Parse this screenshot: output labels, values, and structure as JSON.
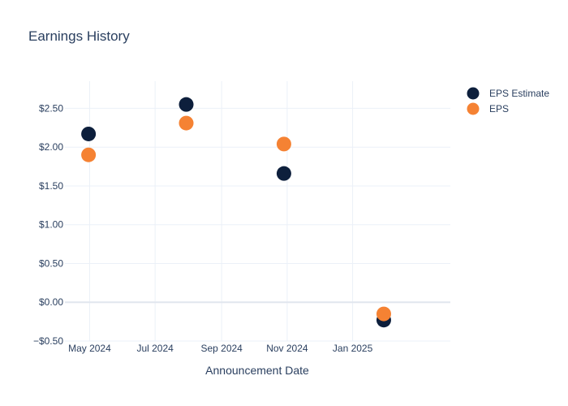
{
  "chart_data": {
    "type": "scatter",
    "title": "Earnings History",
    "xlabel": "Announcement Date",
    "ylabel": "",
    "x_type": "date",
    "xlim": [
      "2024-04-08",
      "2025-04-02"
    ],
    "ylim": [
      -0.5,
      2.85
    ],
    "x_ticks": [
      {
        "value": "2024-05-01",
        "label": "May 2024"
      },
      {
        "value": "2024-07-01",
        "label": "Jul 2024"
      },
      {
        "value": "2024-09-01",
        "label": "Sep 2024"
      },
      {
        "value": "2024-11-01",
        "label": "Nov 2024"
      },
      {
        "value": "2025-01-01",
        "label": "Jan 2025"
      }
    ],
    "y_ticks": [
      {
        "value": -0.5,
        "label": "−$0.50"
      },
      {
        "value": 0,
        "label": "$0.00"
      },
      {
        "value": 0.5,
        "label": "$0.50"
      },
      {
        "value": 1,
        "label": "$1.00"
      },
      {
        "value": 1.5,
        "label": "$1.50"
      },
      {
        "value": 2,
        "label": "$2.00"
      },
      {
        "value": 2.5,
        "label": "$2.50"
      }
    ],
    "grid": true,
    "legend_position": "top-right",
    "series": [
      {
        "name": "EPS Estimate",
        "color": "#0d1f3c",
        "points": [
          {
            "x": "2024-04-30",
            "y": 2.17
          },
          {
            "x": "2024-07-30",
            "y": 2.55
          },
          {
            "x": "2024-10-29",
            "y": 1.66
          },
          {
            "x": "2025-01-30",
            "y": -0.23
          }
        ]
      },
      {
        "name": "EPS",
        "color": "#f58233",
        "points": [
          {
            "x": "2024-04-30",
            "y": 1.9
          },
          {
            "x": "2024-07-30",
            "y": 2.31
          },
          {
            "x": "2024-10-29",
            "y": 2.04
          },
          {
            "x": "2025-01-30",
            "y": -0.15
          }
        ]
      }
    ]
  }
}
